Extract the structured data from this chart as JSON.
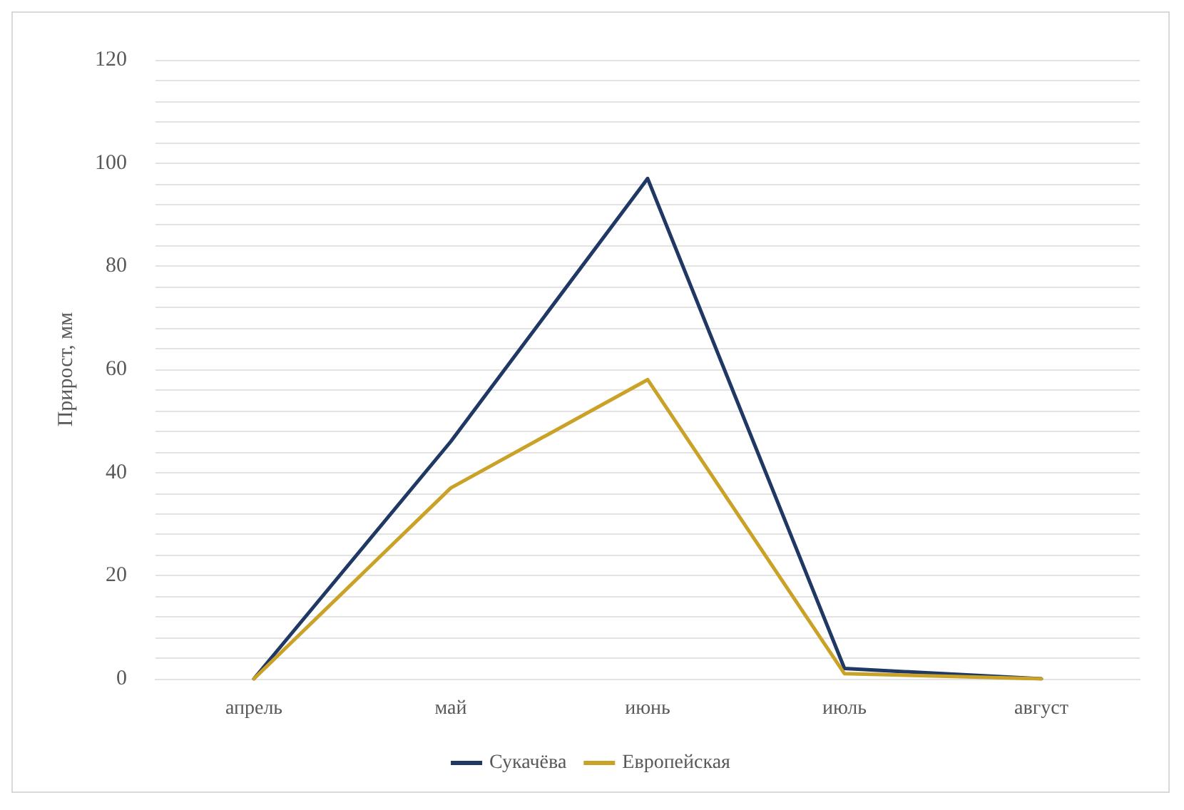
{
  "chart_data": {
    "type": "line",
    "ylabel": "Прирост, мм",
    "categories": [
      "апрель",
      "май",
      "июнь",
      "июль",
      "август"
    ],
    "series": [
      {
        "name": "Сукачёва",
        "color": "#1f3864",
        "values": [
          0,
          46,
          97,
          2,
          0
        ]
      },
      {
        "name": "Европейская",
        "color": "#c9a227",
        "values": [
          0,
          37,
          58,
          1,
          0
        ]
      }
    ],
    "ylim": [
      0,
      120
    ],
    "yticks": [
      0,
      {
        "value": 4,
        "label": null
      },
      {
        "value": 8,
        "label": null
      },
      {
        "value": 12,
        "label": null
      },
      {
        "value": 16,
        "label": null
      },
      20,
      {
        "value": 24,
        "label": null
      },
      {
        "value": 28,
        "label": null
      },
      {
        "value": 32,
        "label": null
      },
      {
        "value": 36,
        "label": null
      },
      40,
      {
        "value": 44,
        "label": null
      },
      {
        "value": 48,
        "label": null
      },
      {
        "value": 52,
        "label": null
      },
      {
        "value": 56,
        "label": null
      },
      60,
      {
        "value": 64,
        "label": null
      },
      {
        "value": 68,
        "label": null
      },
      {
        "value": 72,
        "label": null
      },
      {
        "value": 76,
        "label": null
      },
      80,
      {
        "value": 84,
        "label": null
      },
      {
        "value": 88,
        "label": null
      },
      {
        "value": 92,
        "label": null
      },
      {
        "value": 96,
        "label": null
      },
      100,
      {
        "value": 104,
        "label": null
      },
      {
        "value": 108,
        "label": null
      },
      {
        "value": 112,
        "label": null
      },
      {
        "value": 116,
        "label": null
      },
      120
    ],
    "grid": "y",
    "legend": "bottom",
    "marker": "none",
    "line_style": "solid"
  }
}
